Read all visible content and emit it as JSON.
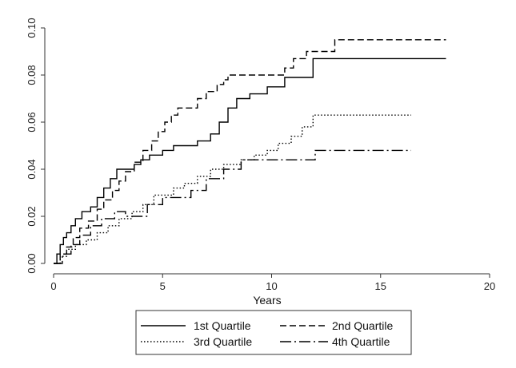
{
  "chart_data": {
    "type": "line",
    "step": true,
    "xlabel": "Years",
    "ylabel": "",
    "xlim": [
      0,
      20
    ],
    "ylim": [
      0,
      0.1
    ],
    "x_ticks": [
      0,
      5,
      10,
      15,
      20
    ],
    "x_tick_labels": [
      "0",
      "5",
      "10",
      "15",
      "20"
    ],
    "y_ticks": [
      0,
      0.02,
      0.04,
      0.06,
      0.08,
      0.1
    ],
    "y_tick_labels": [
      "0.00",
      "0.02",
      "0.04",
      "0.06",
      "0.08",
      "0.10"
    ],
    "grid": false,
    "legend_position": "bottom",
    "series": [
      {
        "name": "1st Quartile",
        "dash": "solid",
        "x": [
          0,
          0.15,
          0.3,
          0.45,
          0.6,
          0.8,
          1.0,
          1.3,
          1.7,
          2.0,
          2.3,
          2.6,
          2.9,
          3.3,
          3.7,
          4.0,
          4.4,
          5.0,
          5.5,
          6.6,
          7.2,
          7.6,
          8.0,
          8.4,
          9.0,
          9.8,
          10.6,
          11.9,
          18.0
        ],
        "y": [
          0,
          0.004,
          0.008,
          0.011,
          0.013,
          0.016,
          0.019,
          0.022,
          0.024,
          0.028,
          0.032,
          0.036,
          0.04,
          0.04,
          0.042,
          0.044,
          0.046,
          0.048,
          0.05,
          0.052,
          0.055,
          0.06,
          0.066,
          0.07,
          0.072,
          0.075,
          0.079,
          0.087,
          0.087
        ]
      },
      {
        "name": "2nd Quartile",
        "dash": "dashed",
        "x": [
          0,
          0.3,
          0.6,
          0.9,
          1.2,
          1.6,
          2.0,
          2.3,
          2.7,
          3.0,
          3.3,
          3.7,
          4.1,
          4.5,
          4.8,
          5.1,
          5.4,
          5.7,
          6.6,
          7.0,
          7.5,
          7.8,
          8.0,
          10.6,
          11.0,
          11.6,
          12.9,
          18.0
        ],
        "y": [
          0,
          0.004,
          0.007,
          0.011,
          0.015,
          0.018,
          0.023,
          0.027,
          0.031,
          0.035,
          0.039,
          0.043,
          0.048,
          0.052,
          0.056,
          0.06,
          0.063,
          0.066,
          0.07,
          0.073,
          0.076,
          0.078,
          0.08,
          0.083,
          0.087,
          0.09,
          0.095,
          0.095
        ]
      },
      {
        "name": "3rd Quartile",
        "dash": "dotted",
        "x": [
          0,
          0.3,
          0.6,
          1.0,
          1.5,
          2.0,
          2.5,
          3.0,
          3.6,
          4.1,
          4.6,
          5.5,
          6.0,
          6.6,
          7.2,
          7.8,
          8.6,
          9.2,
          9.8,
          10.3,
          10.9,
          11.4,
          11.9,
          16.4
        ],
        "y": [
          0,
          0.003,
          0.006,
          0.008,
          0.01,
          0.013,
          0.016,
          0.019,
          0.022,
          0.025,
          0.029,
          0.032,
          0.034,
          0.037,
          0.04,
          0.042,
          0.044,
          0.046,
          0.048,
          0.051,
          0.054,
          0.058,
          0.063,
          0.063
        ]
      },
      {
        "name": "4th Quartile",
        "dash": "dashdot",
        "x": [
          0,
          0.4,
          0.8,
          1.2,
          1.7,
          2.2,
          2.8,
          3.3,
          4.3,
          5.0,
          6.3,
          7.0,
          7.8,
          8.6,
          9.8,
          12.0,
          16.4
        ],
        "y": [
          0,
          0.004,
          0.008,
          0.012,
          0.016,
          0.019,
          0.022,
          0.02,
          0.025,
          0.028,
          0.031,
          0.036,
          0.04,
          0.044,
          0.044,
          0.048,
          0.048
        ]
      }
    ]
  }
}
